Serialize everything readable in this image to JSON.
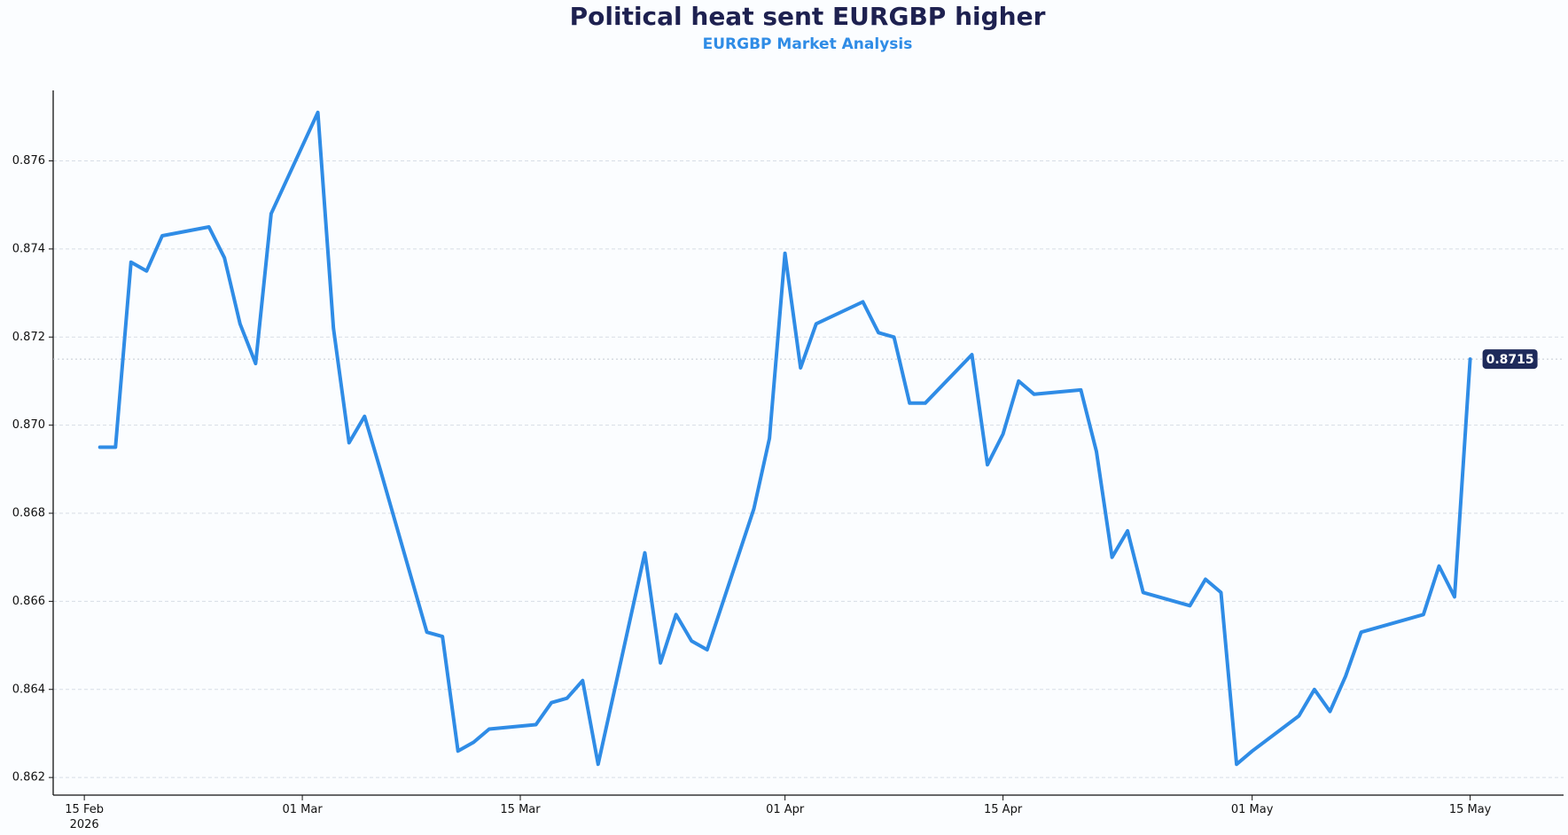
{
  "chart_data": {
    "type": "line",
    "title": "Political heat sent EURGBP higher",
    "subtitle": "EURGBP Market Analysis",
    "xlabel": "",
    "ylabel": "",
    "grid": "horizontal dashed",
    "ylim": [
      0.8616,
      0.8776
    ],
    "xlim": [
      "2026-02-13",
      "2026-05-21"
    ],
    "x_ticks": [
      {
        "date": "2026-02-15",
        "label": "15 Feb",
        "sublabel": "2026"
      },
      {
        "date": "2026-03-01",
        "label": "01 Mar",
        "sublabel": ""
      },
      {
        "date": "2026-03-15",
        "label": "15 Mar",
        "sublabel": ""
      },
      {
        "date": "2026-04-01",
        "label": "01 Apr",
        "sublabel": ""
      },
      {
        "date": "2026-04-15",
        "label": "15 Apr",
        "sublabel": ""
      },
      {
        "date": "2026-05-01",
        "label": "01 May",
        "sublabel": ""
      },
      {
        "date": "2026-05-15",
        "label": "15 May",
        "sublabel": ""
      }
    ],
    "y_ticks": [
      0.862,
      0.864,
      0.866,
      0.868,
      0.87,
      0.872,
      0.874,
      0.876
    ],
    "y_tick_labels": [
      "0.862",
      "0.864",
      "0.866",
      "0.868",
      "0.870",
      "0.872",
      "0.874",
      "0.876"
    ],
    "last_value_label": "0.8715",
    "colors": {
      "line": "#2f8ce6",
      "title": "#1e2150",
      "subtitle": "#2f8ce6",
      "badge": "#1e2a5a",
      "grid": "#d7dde5"
    },
    "series": [
      {
        "x": [
          "2026-02-16",
          "2026-02-17",
          "2026-02-18",
          "2026-02-19",
          "2026-02-20",
          "2026-02-23",
          "2026-02-24",
          "2026-02-25",
          "2026-02-26",
          "2026-02-27",
          "2026-03-02",
          "2026-03-03",
          "2026-03-04",
          "2026-03-05",
          "2026-03-06",
          "2026-03-09",
          "2026-03-10",
          "2026-03-11",
          "2026-03-12",
          "2026-03-13",
          "2026-03-16",
          "2026-03-17",
          "2026-03-18",
          "2026-03-19",
          "2026-03-20",
          "2026-03-23",
          "2026-03-24",
          "2026-03-25",
          "2026-03-26",
          "2026-03-27",
          "2026-03-30",
          "2026-03-31",
          "2026-04-01",
          "2026-04-02",
          "2026-04-03",
          "2026-04-06",
          "2026-04-07",
          "2026-04-08",
          "2026-04-09",
          "2026-04-10",
          "2026-04-13",
          "2026-04-14",
          "2026-04-15",
          "2026-04-16",
          "2026-04-17",
          "2026-04-20",
          "2026-04-21",
          "2026-04-22",
          "2026-04-23",
          "2026-04-24",
          "2026-04-27",
          "2026-04-28",
          "2026-04-29",
          "2026-04-30",
          "2026-05-01",
          "2026-05-04",
          "2026-05-05",
          "2026-05-06",
          "2026-05-07",
          "2026-05-08",
          "2026-05-11",
          "2026-05-12",
          "2026-05-13",
          "2026-05-14",
          "2026-05-15"
        ],
        "values": [
          0.8695,
          0.8695,
          0.8737,
          0.8735,
          0.8743,
          0.8745,
          0.8738,
          0.8723,
          0.8714,
          0.8748,
          0.8771,
          0.8722,
          0.8696,
          0.8702,
          0.869,
          0.8653,
          0.8652,
          0.8626,
          0.8628,
          0.8631,
          0.8632,
          0.8637,
          0.8638,
          0.8642,
          0.8623,
          0.8671,
          0.8646,
          0.8657,
          0.8651,
          0.8649,
          0.8681,
          0.8697,
          0.8739,
          0.8713,
          0.8723,
          0.8728,
          0.8721,
          0.872,
          0.8705,
          0.8705,
          0.8716,
          0.8691,
          0.8698,
          0.871,
          0.8707,
          0.8708,
          0.8694,
          0.867,
          0.8676,
          0.8662,
          0.8659,
          0.8665,
          0.8662,
          0.8623,
          0.8626,
          0.8634,
          0.864,
          0.8635,
          0.8643,
          0.8653,
          0.8656,
          0.8657,
          0.8668,
          0.8661,
          0.8715
        ]
      }
    ]
  }
}
